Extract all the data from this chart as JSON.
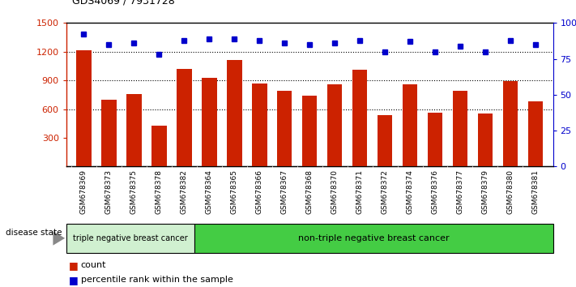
{
  "title": "GDS4069 / 7931728",
  "samples": [
    "GSM678369",
    "GSM678373",
    "GSM678375",
    "GSM678378",
    "GSM678382",
    "GSM678364",
    "GSM678365",
    "GSM678366",
    "GSM678367",
    "GSM678368",
    "GSM678370",
    "GSM678371",
    "GSM678372",
    "GSM678374",
    "GSM678376",
    "GSM678377",
    "GSM678379",
    "GSM678380",
    "GSM678381"
  ],
  "bar_values": [
    1215,
    700,
    760,
    430,
    1020,
    930,
    1110,
    870,
    790,
    740,
    855,
    1015,
    535,
    855,
    565,
    790,
    555,
    890,
    680
  ],
  "dot_values": [
    92,
    85,
    86,
    78,
    88,
    89,
    89,
    88,
    86,
    85,
    86,
    88,
    80,
    87,
    80,
    84,
    80,
    88,
    85
  ],
  "bar_color": "#cc2200",
  "dot_color": "#0000cc",
  "ylim_left": [
    0,
    1500
  ],
  "ylim_right": [
    0,
    100
  ],
  "yticks_left": [
    300,
    600,
    900,
    1200,
    1500
  ],
  "yticks_right": [
    0,
    25,
    50,
    75,
    100
  ],
  "ytick_labels_right": [
    "0",
    "25",
    "50",
    "75",
    "100%"
  ],
  "grid_lines": [
    600,
    900,
    1200
  ],
  "group1_label": "triple negative breast cancer",
  "group2_label": "non-triple negative breast cancer",
  "group1_count": 5,
  "disease_state_label": "disease state",
  "legend_count_label": "count",
  "legend_percentile_label": "percentile rank within the sample",
  "plot_bg": "#ffffff",
  "xtick_bg": "#d8d8d8",
  "group1_bg": "#d0f0d0",
  "group2_bg": "#44cc44",
  "arrow_color": "#888888"
}
